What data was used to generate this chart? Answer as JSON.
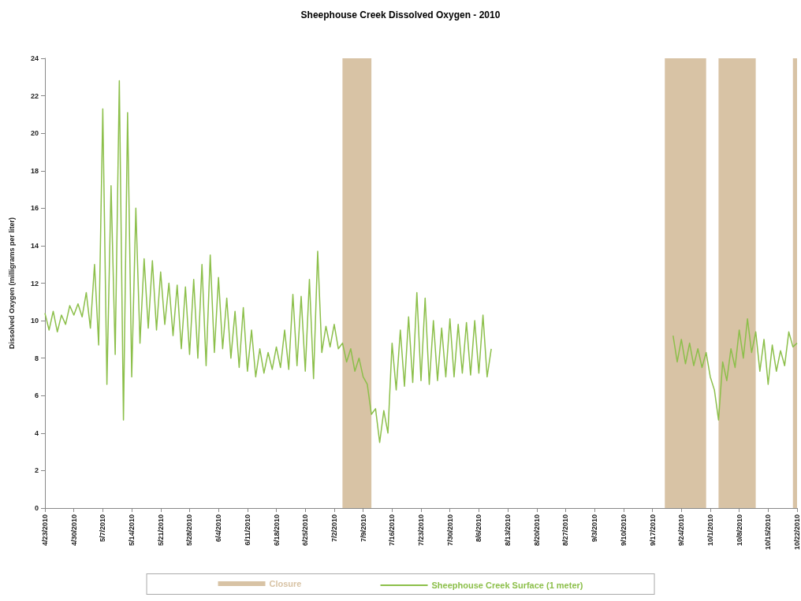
{
  "chart_data": {
    "type": "line",
    "title": "Sheephouse Creek Dissolved Oxygen - 2010",
    "ylabel": "Dissolved Oxygen (milligrams per liter)",
    "xlim": [
      "2010-04-23",
      "2010-10-22"
    ],
    "xticks": [
      {
        "value": "2010-04-23",
        "label": "4/23/2010"
      },
      {
        "value": "2010-04-30",
        "label": "4/30/2010"
      },
      {
        "value": "2010-05-07",
        "label": "5/7/2010"
      },
      {
        "value": "2010-05-14",
        "label": "5/14/2010"
      },
      {
        "value": "2010-05-21",
        "label": "5/21/2010"
      },
      {
        "value": "2010-05-28",
        "label": "5/28/2010"
      },
      {
        "value": "2010-06-04",
        "label": "6/4/2010"
      },
      {
        "value": "2010-06-11",
        "label": "6/11/2010"
      },
      {
        "value": "2010-06-18",
        "label": "6/18/2010"
      },
      {
        "value": "2010-06-25",
        "label": "6/25/2010"
      },
      {
        "value": "2010-07-02",
        "label": "7/2/2010"
      },
      {
        "value": "2010-07-09",
        "label": "7/9/2010"
      },
      {
        "value": "2010-07-16",
        "label": "7/16/2010"
      },
      {
        "value": "2010-07-23",
        "label": "7/23/2010"
      },
      {
        "value": "2010-07-30",
        "label": "7/30/2010"
      },
      {
        "value": "2010-08-06",
        "label": "8/6/2010"
      },
      {
        "value": "2010-08-13",
        "label": "8/13/2010"
      },
      {
        "value": "2010-08-20",
        "label": "8/20/2010"
      },
      {
        "value": "2010-08-27",
        "label": "8/27/2010"
      },
      {
        "value": "2010-09-03",
        "label": "9/3/2010"
      },
      {
        "value": "2010-09-10",
        "label": "9/10/2010"
      },
      {
        "value": "2010-09-17",
        "label": "9/17/2010"
      },
      {
        "value": "2010-09-24",
        "label": "9/24/2010"
      },
      {
        "value": "2010-10-01",
        "label": "10/1/2010"
      },
      {
        "value": "2010-10-08",
        "label": "10/8/2010"
      },
      {
        "value": "2010-10-15",
        "label": "10/15/2010"
      },
      {
        "value": "2010-10-22",
        "label": "10/22/2010"
      }
    ],
    "ylim": [
      0,
      24
    ],
    "yticks": [
      0,
      2,
      4,
      6,
      8,
      10,
      12,
      14,
      16,
      18,
      20,
      22,
      24
    ],
    "grid": false,
    "legend": "bottom",
    "marker": "none",
    "line_style": "solid",
    "bands": [
      {
        "axis": "x",
        "from": "2010-07-04",
        "to": "2010-07-11",
        "label": "Closure",
        "color": "#d8c3a5"
      },
      {
        "axis": "x",
        "from": "2010-09-20",
        "to": "2010-09-30",
        "color": "#d8c3a5"
      },
      {
        "axis": "x",
        "from": "2010-10-03",
        "to": "2010-10-12",
        "color": "#d8c3a5"
      },
      {
        "axis": "x",
        "from": "2010-10-21",
        "to": "2010-10-22",
        "color": "#d8c3a5"
      }
    ],
    "series": [
      {
        "name": "Sheephouse Creek Surface (1 meter)",
        "color": "#8cbf4a",
        "x": [
          "2010-04-23",
          "2010-04-24",
          "2010-04-25",
          "2010-04-26",
          "2010-04-27",
          "2010-04-28",
          "2010-04-29",
          "2010-04-30",
          "2010-05-01",
          "2010-05-02",
          "2010-05-03",
          "2010-05-04",
          "2010-05-05",
          "2010-05-06",
          "2010-05-07",
          "2010-05-08",
          "2010-05-09",
          "2010-05-10",
          "2010-05-11",
          "2010-05-12",
          "2010-05-13",
          "2010-05-14",
          "2010-05-15",
          "2010-05-16",
          "2010-05-17",
          "2010-05-18",
          "2010-05-19",
          "2010-05-20",
          "2010-05-21",
          "2010-05-22",
          "2010-05-23",
          "2010-05-24",
          "2010-05-25",
          "2010-05-26",
          "2010-05-27",
          "2010-05-28",
          "2010-05-29",
          "2010-05-30",
          "2010-05-31",
          "2010-06-01",
          "2010-06-02",
          "2010-06-03",
          "2010-06-04",
          "2010-06-05",
          "2010-06-06",
          "2010-06-07",
          "2010-06-08",
          "2010-06-09",
          "2010-06-10",
          "2010-06-11",
          "2010-06-12",
          "2010-06-13",
          "2010-06-14",
          "2010-06-15",
          "2010-06-16",
          "2010-06-17",
          "2010-06-18",
          "2010-06-19",
          "2010-06-20",
          "2010-06-21",
          "2010-06-22",
          "2010-06-23",
          "2010-06-24",
          "2010-06-25",
          "2010-06-26",
          "2010-06-27",
          "2010-06-28",
          "2010-06-29",
          "2010-06-30",
          "2010-07-01",
          "2010-07-02",
          "2010-07-03",
          "2010-07-04",
          "2010-07-05",
          "2010-07-06",
          "2010-07-07",
          "2010-07-08",
          "2010-07-09",
          "2010-07-10",
          "2010-07-11",
          "2010-07-12",
          "2010-07-13",
          "2010-07-14",
          "2010-07-15",
          "2010-07-16",
          "2010-07-17",
          "2010-07-18",
          "2010-07-19",
          "2010-07-20",
          "2010-07-21",
          "2010-07-22",
          "2010-07-23",
          "2010-07-24",
          "2010-07-25",
          "2010-07-26",
          "2010-07-27",
          "2010-07-28",
          "2010-07-29",
          "2010-07-30",
          "2010-07-31",
          "2010-08-01",
          "2010-08-02",
          "2010-08-03",
          "2010-08-04",
          "2010-08-05",
          "2010-08-06",
          "2010-08-07",
          "2010-08-08",
          "2010-08-09",
          "2010-08-10",
          "2010-09-22",
          "2010-09-23",
          "2010-09-24",
          "2010-09-25",
          "2010-09-26",
          "2010-09-27",
          "2010-09-28",
          "2010-09-29",
          "2010-09-30",
          "2010-10-01",
          "2010-10-02",
          "2010-10-03",
          "2010-10-04",
          "2010-10-05",
          "2010-10-06",
          "2010-10-07",
          "2010-10-08",
          "2010-10-09",
          "2010-10-10",
          "2010-10-11",
          "2010-10-12",
          "2010-10-13",
          "2010-10-14",
          "2010-10-15",
          "2010-10-16",
          "2010-10-17",
          "2010-10-18",
          "2010-10-19",
          "2010-10-20",
          "2010-10-21",
          "2010-10-22"
        ],
        "values": [
          10.4,
          9.5,
          10.5,
          9.4,
          10.3,
          9.8,
          10.8,
          10.3,
          10.9,
          10.2,
          11.5,
          9.6,
          13.0,
          8.7,
          21.3,
          6.6,
          17.2,
          8.2,
          22.8,
          4.7,
          21.1,
          7.0,
          16.0,
          8.8,
          13.3,
          9.6,
          13.2,
          9.5,
          12.6,
          9.8,
          12.0,
          9.2,
          11.9,
          8.5,
          11.8,
          8.2,
          12.2,
          8.0,
          13.0,
          7.6,
          13.5,
          8.3,
          12.3,
          8.5,
          11.2,
          8.0,
          10.5,
          7.5,
          10.7,
          7.3,
          9.5,
          7.0,
          8.5,
          7.2,
          8.3,
          7.4,
          8.6,
          7.5,
          9.5,
          7.4,
          11.4,
          7.6,
          11.3,
          7.3,
          12.2,
          6.9,
          13.7,
          8.3,
          9.7,
          8.6,
          9.8,
          8.5,
          8.8,
          7.8,
          8.5,
          7.3,
          8.0,
          7.0,
          6.6,
          5.0,
          5.3,
          3.5,
          5.2,
          4.0,
          8.8,
          6.3,
          9.5,
          6.5,
          10.2,
          6.7,
          11.5,
          6.8,
          11.2,
          6.6,
          10.0,
          6.8,
          9.6,
          7.0,
          10.1,
          7.0,
          9.8,
          7.2,
          9.9,
          7.1,
          10.0,
          7.2,
          10.3,
          7.0,
          8.5,
          null,
          9.2,
          7.8,
          9.0,
          7.7,
          8.8,
          7.6,
          8.5,
          7.5,
          8.3,
          7.0,
          6.3,
          4.7,
          7.8,
          6.8,
          8.5,
          7.5,
          9.5,
          8.0,
          10.1,
          8.3,
          9.4,
          7.3,
          9.0,
          6.6,
          8.7,
          7.3,
          8.4,
          7.6,
          9.4,
          8.6,
          8.8
        ]
      }
    ]
  }
}
